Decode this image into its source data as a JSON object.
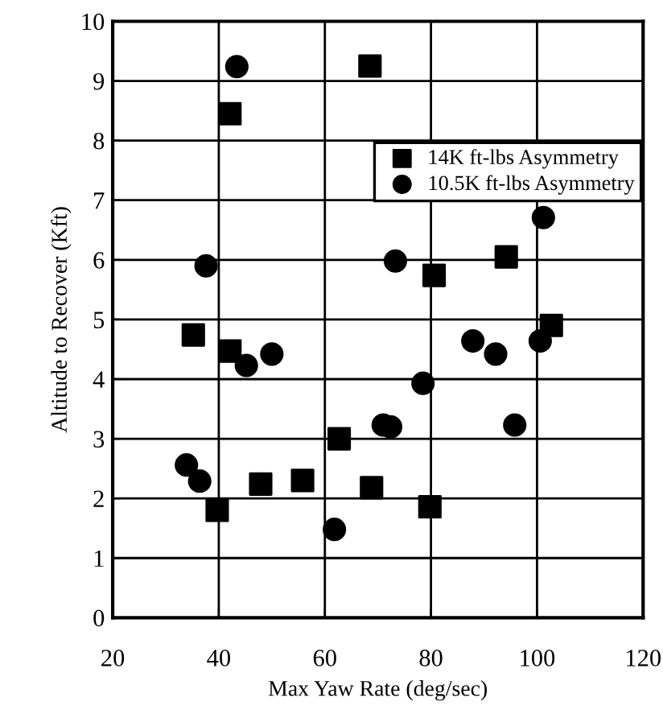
{
  "chart_data": {
    "type": "scatter",
    "xlabel": "Max Yaw Rate (deg/sec)",
    "ylabel": "Altitude to Recover (Kft)",
    "xlim": [
      20,
      120
    ],
    "xticks": [
      20,
      40,
      60,
      80,
      100,
      120
    ],
    "ylim": [
      0,
      10
    ],
    "yticks": [
      0,
      1,
      2,
      3,
      4,
      5,
      6,
      7,
      8,
      9,
      10
    ],
    "grid": true,
    "legend": "top right",
    "series": [
      {
        "name": "14K ft-lbs Asymmetry",
        "color": "#000000",
        "marker": "square",
        "x": [
          42.1,
          68.5,
          94.2,
          80.6,
          102.7,
          35.2,
          42.1,
          62.7,
          47.9,
          55.8,
          39.7,
          68.8,
          79.8
        ],
        "values": [
          8.45,
          9.25,
          6.05,
          5.74,
          4.9,
          4.74,
          4.47,
          3.0,
          2.24,
          2.3,
          1.8,
          2.18,
          1.86
        ]
      },
      {
        "name": "10.5K ft-lbs Asymmetry",
        "color": "#000000",
        "marker": "circle",
        "x": [
          43.4,
          37.6,
          73.3,
          101.2,
          45.2,
          50.0,
          33.9,
          36.4,
          61.8,
          87.9,
          92.2,
          100.6,
          78.5,
          71.0,
          72.4,
          95.8
        ],
        "values": [
          9.24,
          5.9,
          5.98,
          6.71,
          4.23,
          4.42,
          2.56,
          2.29,
          1.48,
          4.64,
          4.42,
          4.64,
          3.93,
          3.23,
          3.2,
          3.23
        ]
      }
    ]
  }
}
